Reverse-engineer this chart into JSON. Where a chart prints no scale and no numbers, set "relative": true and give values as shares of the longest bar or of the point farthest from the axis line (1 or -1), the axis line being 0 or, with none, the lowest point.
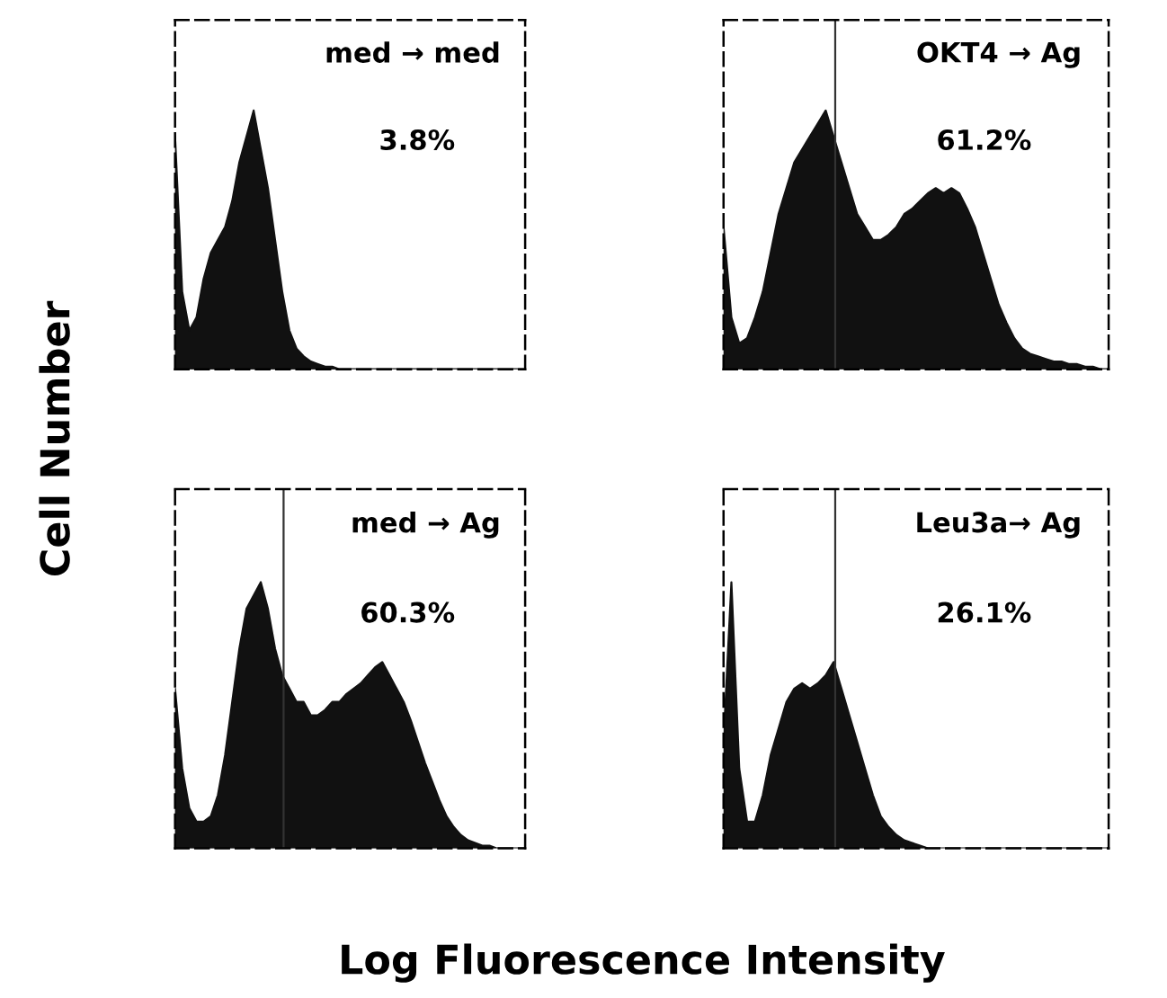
{
  "chart_data": [
    {
      "type": "area",
      "relative": true,
      "ylabel": "Cell Number",
      "color": "#111111",
      "annotations": [
        "med → med",
        "3.8%"
      ],
      "categories": [
        null,
        null,
        null,
        null,
        null,
        null,
        null,
        null,
        null,
        null,
        null,
        null,
        null,
        null,
        null,
        null,
        null,
        null,
        null,
        null,
        null,
        null,
        null,
        null,
        null,
        null,
        null,
        null,
        null,
        null,
        null,
        null,
        null,
        null,
        null,
        null,
        null,
        null,
        null,
        null,
        null,
        null,
        null,
        null,
        null,
        null,
        null,
        null,
        null,
        null
      ],
      "values": [
        0.9,
        0.3,
        0.15,
        0.2,
        0.35,
        0.45,
        0.5,
        0.55,
        0.65,
        0.8,
        0.9,
        1.0,
        0.85,
        0.7,
        0.5,
        0.3,
        0.15,
        0.08,
        0.05,
        0.03,
        0.02,
        0.01,
        0.01,
        0,
        0,
        0,
        0,
        0,
        0,
        0,
        0,
        0,
        0,
        0,
        0,
        0,
        0,
        0,
        0,
        0,
        0,
        0,
        0,
        0,
        0,
        0,
        0,
        0,
        0,
        0
      ]
    },
    {
      "type": "area",
      "relative": true,
      "color": "#111111",
      "annotations": [
        "OKT4 → Ag",
        "61.2%"
      ],
      "categories": [
        null,
        null,
        null,
        null,
        null,
        null,
        null,
        null,
        null,
        null,
        null,
        null,
        null,
        null,
        null,
        null,
        null,
        null,
        null,
        null,
        null,
        null,
        null,
        null,
        null,
        null,
        null,
        null,
        null,
        null,
        null,
        null,
        null,
        null,
        null,
        null,
        null,
        null,
        null,
        null,
        null,
        null,
        null,
        null,
        null,
        null,
        null,
        null,
        null,
        null
      ],
      "values": [
        0.55,
        0.2,
        0.1,
        0.12,
        0.2,
        0.3,
        0.45,
        0.6,
        0.7,
        0.8,
        0.85,
        0.9,
        0.95,
        1.0,
        0.9,
        0.8,
        0.7,
        0.6,
        0.55,
        0.5,
        0.5,
        0.52,
        0.55,
        0.6,
        0.62,
        0.65,
        0.68,
        0.7,
        0.68,
        0.7,
        0.68,
        0.62,
        0.55,
        0.45,
        0.35,
        0.25,
        0.18,
        0.12,
        0.08,
        0.06,
        0.05,
        0.04,
        0.03,
        0.03,
        0.02,
        0.02,
        0.01,
        0.01,
        0,
        0
      ]
    },
    {
      "type": "area",
      "relative": true,
      "xlabel": "Log Fluorescence Intensity",
      "color": "#111111",
      "annotations": [
        "med → Ag",
        "60.3%"
      ],
      "categories": [
        null,
        null,
        null,
        null,
        null,
        null,
        null,
        null,
        null,
        null,
        null,
        null,
        null,
        null,
        null,
        null,
        null,
        null,
        null,
        null,
        null,
        null,
        null,
        null,
        null,
        null,
        null,
        null,
        null,
        null,
        null,
        null,
        null,
        null,
        null,
        null,
        null,
        null,
        null,
        null,
        null,
        null,
        null,
        null,
        null,
        null,
        null,
        null,
        null,
        null
      ],
      "values": [
        0.6,
        0.3,
        0.15,
        0.1,
        0.1,
        0.12,
        0.2,
        0.35,
        0.55,
        0.75,
        0.9,
        0.95,
        1.0,
        0.9,
        0.75,
        0.65,
        0.6,
        0.55,
        0.55,
        0.5,
        0.5,
        0.52,
        0.55,
        0.55,
        0.58,
        0.6,
        0.62,
        0.65,
        0.68,
        0.7,
        0.65,
        0.6,
        0.55,
        0.48,
        0.4,
        0.32,
        0.25,
        0.18,
        0.12,
        0.08,
        0.05,
        0.03,
        0.02,
        0.01,
        0.01,
        0,
        0,
        0,
        0,
        0
      ]
    },
    {
      "type": "area",
      "relative": true,
      "color": "#111111",
      "annotations": [
        "Leu3a→ Ag",
        "26.1%"
      ],
      "categories": [
        null,
        null,
        null,
        null,
        null,
        null,
        null,
        null,
        null,
        null,
        null,
        null,
        null,
        null,
        null,
        null,
        null,
        null,
        null,
        null,
        null,
        null,
        null,
        null,
        null,
        null,
        null,
        null,
        null,
        null,
        null,
        null,
        null,
        null,
        null,
        null,
        null,
        null,
        null,
        null,
        null,
        null,
        null,
        null,
        null,
        null,
        null,
        null,
        null,
        null
      ],
      "values": [
        0.4,
        1.0,
        0.3,
        0.1,
        0.1,
        0.2,
        0.35,
        0.45,
        0.55,
        0.6,
        0.62,
        0.6,
        0.62,
        0.65,
        0.7,
        0.6,
        0.5,
        0.4,
        0.3,
        0.2,
        0.12,
        0.08,
        0.05,
        0.03,
        0.02,
        0.01,
        0,
        0,
        0,
        0,
        0,
        0,
        0,
        0,
        0,
        0,
        0,
        0,
        0,
        0,
        0,
        0,
        0,
        0,
        0,
        0,
        0,
        0,
        0,
        0
      ]
    }
  ]
}
